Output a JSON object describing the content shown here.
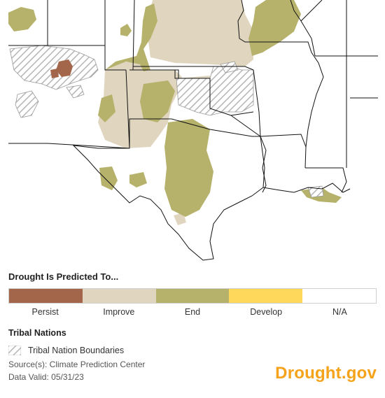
{
  "legend": {
    "title": "Drought Is Predicted To...",
    "categories": [
      {
        "label": "Persist",
        "color": "#a3664a"
      },
      {
        "label": "Improve",
        "color": "#e0d5bf"
      },
      {
        "label": "End",
        "color": "#b6b26b"
      },
      {
        "label": "Develop",
        "color": "#fdd85a"
      },
      {
        "label": "N/A",
        "color": "#ffffff"
      }
    ]
  },
  "tribal": {
    "title": "Tribal Nations",
    "boundaries_label": "Tribal Nation Boundaries"
  },
  "source": "Source(s): Climate Prediction Center",
  "valid": "Data Valid: 05/31/23",
  "brand": "Drought.gov"
}
